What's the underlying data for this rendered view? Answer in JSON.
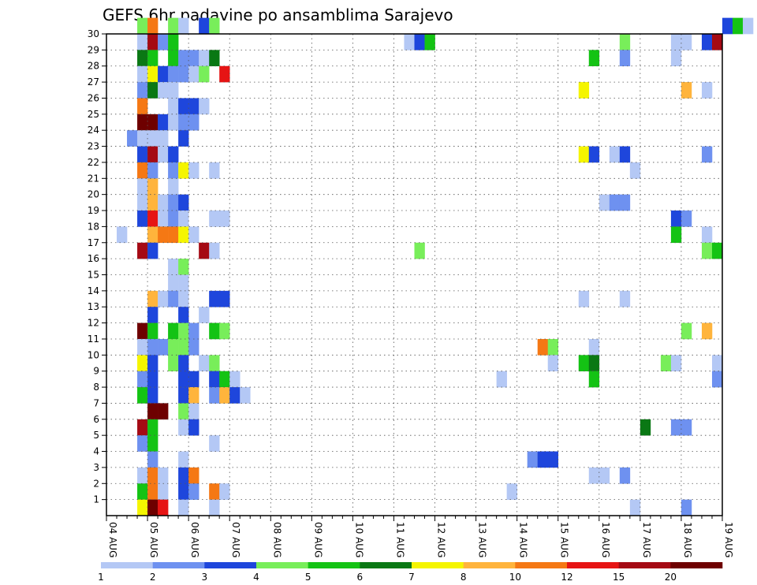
{
  "chart_data": {
    "type": "heatmap",
    "title": "GEFS 6hr padavine po ansamblima Sarajevo",
    "xlabel": "",
    "ylabel": "",
    "x_start_label": "04 AUG",
    "x_tick_labels": [
      "04 AUG",
      "05 AUG",
      "06 AUG",
      "07 AUG",
      "08 AUG",
      "09 AUG",
      "10 AUG",
      "11 AUG",
      "12 AUG",
      "13 AUG",
      "14 AUG",
      "15 AUG",
      "16 AUG",
      "17 AUG",
      "18 AUG",
      "19 AUG"
    ],
    "x_step_hours": 6,
    "y_tick_labels": [
      "1",
      "2",
      "3",
      "4",
      "5",
      "6",
      "7",
      "8",
      "9",
      "10",
      "11",
      "12",
      "13",
      "14",
      "15",
      "16",
      "17",
      "18",
      "19",
      "20",
      "21",
      "22",
      "23",
      "24",
      "25",
      "26",
      "27",
      "28",
      "29",
      "30"
    ],
    "ylim": [
      0,
      30
    ],
    "grid": true,
    "colorbar": {
      "colors": [
        "#b4c8f5",
        "#6e91f0",
        "#1e46dc",
        "#78ee5a",
        "#14c314",
        "#0a7814",
        "#f5f500",
        "#ffb43c",
        "#f57814",
        "#e61414",
        "#a50a14",
        "#6e0000"
      ],
      "tick_labels": [
        "1",
        "2",
        "3",
        "4",
        "5",
        "6",
        "7",
        "8",
        "10",
        "12",
        "15",
        "20"
      ],
      "placement": "bottom"
    },
    "cells_format": "[time_step_index, member, color_class]",
    "cells": [
      [
        3,
        30,
        4
      ],
      [
        4,
        30,
        9
      ],
      [
        6,
        30,
        4
      ],
      [
        7,
        30,
        1
      ],
      [
        9,
        30,
        3
      ],
      [
        10,
        30,
        4
      ],
      [
        60,
        30,
        3
      ],
      [
        61,
        30,
        5
      ],
      [
        62,
        30,
        1
      ],
      [
        3,
        29,
        1
      ],
      [
        4,
        29,
        11
      ],
      [
        5,
        29,
        2
      ],
      [
        6,
        29,
        5
      ],
      [
        29,
        29,
        1
      ],
      [
        30,
        29,
        3
      ],
      [
        31,
        29,
        5
      ],
      [
        50,
        29,
        4
      ],
      [
        55,
        29,
        1
      ],
      [
        56,
        29,
        1
      ],
      [
        58,
        29,
        3
      ],
      [
        59,
        29,
        11
      ],
      [
        3,
        28,
        6
      ],
      [
        4,
        28,
        5
      ],
      [
        6,
        28,
        5
      ],
      [
        7,
        28,
        2
      ],
      [
        8,
        28,
        2
      ],
      [
        9,
        28,
        1
      ],
      [
        10,
        28,
        6
      ],
      [
        47,
        28,
        5
      ],
      [
        50,
        28,
        2
      ],
      [
        55,
        28,
        1
      ],
      [
        3,
        27,
        1
      ],
      [
        4,
        27,
        7
      ],
      [
        5,
        27,
        3
      ],
      [
        6,
        27,
        2
      ],
      [
        7,
        27,
        2
      ],
      [
        8,
        27,
        1
      ],
      [
        9,
        27,
        4
      ],
      [
        11,
        27,
        10
      ],
      [
        3,
        26,
        2
      ],
      [
        4,
        26,
        6
      ],
      [
        5,
        26,
        1
      ],
      [
        6,
        26,
        1
      ],
      [
        46,
        26,
        7
      ],
      [
        56,
        26,
        8
      ],
      [
        58,
        26,
        1
      ],
      [
        3,
        25,
        9
      ],
      [
        6,
        25,
        1
      ],
      [
        7,
        25,
        3
      ],
      [
        8,
        25,
        3
      ],
      [
        9,
        25,
        1
      ],
      [
        3,
        24,
        12
      ],
      [
        4,
        24,
        12
      ],
      [
        5,
        24,
        3
      ],
      [
        6,
        24,
        1
      ],
      [
        7,
        24,
        2
      ],
      [
        8,
        24,
        2
      ],
      [
        2,
        23,
        2
      ],
      [
        3,
        23,
        1
      ],
      [
        4,
        23,
        1
      ],
      [
        5,
        23,
        1
      ],
      [
        7,
        23,
        3
      ],
      [
        3,
        22,
        3
      ],
      [
        4,
        22,
        11
      ],
      [
        5,
        22,
        1
      ],
      [
        6,
        22,
        3
      ],
      [
        46,
        22,
        7
      ],
      [
        47,
        22,
        3
      ],
      [
        49,
        22,
        1
      ],
      [
        50,
        22,
        3
      ],
      [
        58,
        22,
        2
      ],
      [
        3,
        21,
        9
      ],
      [
        4,
        21,
        2
      ],
      [
        6,
        21,
        2
      ],
      [
        7,
        21,
        7
      ],
      [
        8,
        21,
        1
      ],
      [
        10,
        21,
        1
      ],
      [
        51,
        21,
        1
      ],
      [
        3,
        20,
        1
      ],
      [
        4,
        20,
        8
      ],
      [
        6,
        20,
        1
      ],
      [
        3,
        19,
        1
      ],
      [
        4,
        19,
        8
      ],
      [
        5,
        19,
        1
      ],
      [
        6,
        19,
        2
      ],
      [
        7,
        19,
        3
      ],
      [
        48,
        19,
        1
      ],
      [
        49,
        19,
        2
      ],
      [
        50,
        19,
        2
      ],
      [
        3,
        18,
        3
      ],
      [
        4,
        18,
        10
      ],
      [
        5,
        18,
        1
      ],
      [
        6,
        18,
        2
      ],
      [
        7,
        18,
        1
      ],
      [
        10,
        18,
        1
      ],
      [
        11,
        18,
        1
      ],
      [
        55,
        18,
        3
      ],
      [
        56,
        18,
        2
      ],
      [
        1,
        17,
        1
      ],
      [
        4,
        17,
        8
      ],
      [
        5,
        17,
        9
      ],
      [
        6,
        17,
        9
      ],
      [
        7,
        17,
        7
      ],
      [
        8,
        17,
        1
      ],
      [
        55,
        17,
        5
      ],
      [
        58,
        17,
        1
      ],
      [
        3,
        16,
        11
      ],
      [
        4,
        16,
        3
      ],
      [
        9,
        16,
        11
      ],
      [
        10,
        16,
        1
      ],
      [
        30,
        16,
        4
      ],
      [
        58,
        16,
        4
      ],
      [
        59,
        16,
        5
      ],
      [
        6,
        15,
        1
      ],
      [
        7,
        15,
        4
      ],
      [
        6,
        14,
        1
      ],
      [
        7,
        14,
        1
      ],
      [
        4,
        13,
        8
      ],
      [
        5,
        13,
        1
      ],
      [
        6,
        13,
        2
      ],
      [
        7,
        13,
        1
      ],
      [
        10,
        13,
        3
      ],
      [
        11,
        13,
        3
      ],
      [
        46,
        13,
        1
      ],
      [
        50,
        13,
        1
      ],
      [
        4,
        12,
        3
      ],
      [
        7,
        12,
        3
      ],
      [
        9,
        12,
        1
      ],
      [
        3,
        11,
        12
      ],
      [
        4,
        11,
        5
      ],
      [
        6,
        11,
        5
      ],
      [
        7,
        11,
        4
      ],
      [
        8,
        11,
        2
      ],
      [
        10,
        11,
        5
      ],
      [
        11,
        11,
        4
      ],
      [
        56,
        11,
        4
      ],
      [
        58,
        11,
        8
      ],
      [
        3,
        10,
        1
      ],
      [
        4,
        10,
        2
      ],
      [
        5,
        10,
        2
      ],
      [
        6,
        10,
        4
      ],
      [
        7,
        10,
        4
      ],
      [
        8,
        10,
        2
      ],
      [
        42,
        10,
        9
      ],
      [
        43,
        10,
        4
      ],
      [
        47,
        10,
        1
      ],
      [
        3,
        9,
        7
      ],
      [
        4,
        9,
        3
      ],
      [
        6,
        9,
        4
      ],
      [
        7,
        9,
        3
      ],
      [
        9,
        9,
        1
      ],
      [
        10,
        9,
        4
      ],
      [
        43,
        9,
        1
      ],
      [
        46,
        9,
        5
      ],
      [
        47,
        9,
        6
      ],
      [
        54,
        9,
        4
      ],
      [
        55,
        9,
        1
      ],
      [
        59,
        9,
        1
      ],
      [
        3,
        8,
        2
      ],
      [
        4,
        8,
        3
      ],
      [
        7,
        8,
        3
      ],
      [
        8,
        8,
        3
      ],
      [
        10,
        8,
        3
      ],
      [
        11,
        8,
        5
      ],
      [
        12,
        8,
        1
      ],
      [
        38,
        8,
        1
      ],
      [
        47,
        8,
        5
      ],
      [
        59,
        8,
        2
      ],
      [
        3,
        7,
        5
      ],
      [
        4,
        7,
        3
      ],
      [
        7,
        7,
        3
      ],
      [
        8,
        7,
        8
      ],
      [
        10,
        7,
        2
      ],
      [
        11,
        7,
        8
      ],
      [
        12,
        7,
        3
      ],
      [
        13,
        7,
        1
      ],
      [
        4,
        6,
        12
      ],
      [
        5,
        6,
        12
      ],
      [
        7,
        6,
        4
      ],
      [
        8,
        6,
        1
      ],
      [
        3,
        5,
        11
      ],
      [
        4,
        5,
        5
      ],
      [
        7,
        5,
        1
      ],
      [
        8,
        5,
        3
      ],
      [
        52,
        5,
        6
      ],
      [
        55,
        5,
        2
      ],
      [
        56,
        5,
        2
      ],
      [
        3,
        4,
        2
      ],
      [
        4,
        4,
        5
      ],
      [
        10,
        4,
        1
      ],
      [
        4,
        3,
        2
      ],
      [
        7,
        3,
        1
      ],
      [
        41,
        3,
        2
      ],
      [
        42,
        3,
        3
      ],
      [
        43,
        3,
        3
      ],
      [
        3,
        2,
        1
      ],
      [
        4,
        2,
        9
      ],
      [
        5,
        2,
        1
      ],
      [
        7,
        2,
        3
      ],
      [
        8,
        2,
        9
      ],
      [
        47,
        2,
        1
      ],
      [
        48,
        2,
        1
      ],
      [
        50,
        2,
        2
      ],
      [
        3,
        1,
        5
      ],
      [
        4,
        1,
        9
      ],
      [
        5,
        1,
        1
      ],
      [
        7,
        1,
        3
      ],
      [
        8,
        1,
        2
      ],
      [
        10,
        1,
        9
      ],
      [
        11,
        1,
        1
      ],
      [
        39,
        1,
        1
      ],
      [
        3,
        0,
        7
      ],
      [
        4,
        0,
        12
      ],
      [
        5,
        0,
        10
      ],
      [
        7,
        0,
        1
      ],
      [
        10,
        0,
        1
      ],
      [
        51,
        0,
        1
      ],
      [
        56,
        0,
        2
      ]
    ]
  }
}
